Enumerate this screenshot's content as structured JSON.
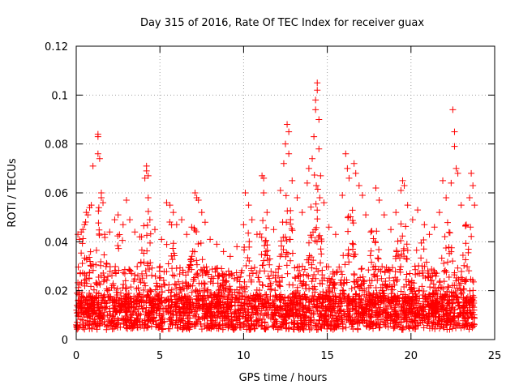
{
  "chart_data": {
    "type": "scatter",
    "title": "Day 315 of 2016, Rate Of TEC Index for receiver guax",
    "xlabel": "GPS time / hours",
    "ylabel": "ROTI / TECUs",
    "xlim": [
      0,
      25
    ],
    "ylim": [
      0,
      0.12
    ],
    "xticks": [
      0,
      5,
      10,
      15,
      20,
      25
    ],
    "xtick_labels": [
      "0",
      "5",
      "10",
      "15",
      "20",
      "25"
    ],
    "yticks": [
      0,
      0.02,
      0.04,
      0.06,
      0.08,
      0.1,
      0.12
    ],
    "ytick_labels": [
      "0",
      "0.02",
      "0.04",
      "0.06",
      "0.08",
      "0.1",
      "0.12"
    ],
    "grid": true,
    "marker": "+",
    "series_color": "#ff0000",
    "points": [
      [
        0.1,
        0.043
      ],
      [
        0.2,
        0.041
      ],
      [
        0.3,
        0.044
      ],
      [
        0.4,
        0.045
      ],
      [
        0.5,
        0.047
      ],
      [
        0.6,
        0.052
      ],
      [
        0.7,
        0.051
      ],
      [
        0.8,
        0.054
      ],
      [
        0.9,
        0.055
      ],
      [
        1.0,
        0.071
      ],
      [
        1.3,
        0.084
      ],
      [
        1.3,
        0.083
      ],
      [
        1.3,
        0.076
      ],
      [
        1.4,
        0.074
      ],
      [
        1.5,
        0.06
      ],
      [
        1.5,
        0.058
      ],
      [
        1.6,
        0.056
      ],
      [
        1.7,
        0.043
      ],
      [
        2.0,
        0.044
      ],
      [
        2.3,
        0.049
      ],
      [
        2.5,
        0.051
      ],
      [
        2.8,
        0.047
      ],
      [
        3.0,
        0.057
      ],
      [
        3.2,
        0.049
      ],
      [
        3.5,
        0.044
      ],
      [
        3.8,
        0.042
      ],
      [
        4.1,
        0.066
      ],
      [
        4.2,
        0.071
      ],
      [
        4.2,
        0.069
      ],
      [
        4.3,
        0.067
      ],
      [
        4.3,
        0.058
      ],
      [
        4.4,
        0.049
      ],
      [
        4.7,
        0.045
      ],
      [
        5.1,
        0.041
      ],
      [
        5.4,
        0.056
      ],
      [
        5.6,
        0.055
      ],
      [
        5.8,
        0.052
      ],
      [
        6.0,
        0.047
      ],
      [
        6.3,
        0.049
      ],
      [
        6.6,
        0.043
      ],
      [
        6.9,
        0.046
      ],
      [
        7.1,
        0.06
      ],
      [
        7.2,
        0.058
      ],
      [
        7.3,
        0.057
      ],
      [
        7.5,
        0.052
      ],
      [
        7.7,
        0.048
      ],
      [
        8.0,
        0.041
      ],
      [
        8.4,
        0.039
      ],
      [
        8.8,
        0.036
      ],
      [
        9.2,
        0.034
      ],
      [
        9.6,
        0.038
      ],
      [
        10.0,
        0.047
      ],
      [
        10.1,
        0.06
      ],
      [
        10.3,
        0.055
      ],
      [
        10.5,
        0.049
      ],
      [
        10.8,
        0.043
      ],
      [
        11.1,
        0.067
      ],
      [
        11.2,
        0.066
      ],
      [
        11.2,
        0.06
      ],
      [
        11.4,
        0.052
      ],
      [
        11.8,
        0.045
      ],
      [
        12.2,
        0.061
      ],
      [
        12.4,
        0.072
      ],
      [
        12.5,
        0.08
      ],
      [
        12.6,
        0.088
      ],
      [
        12.7,
        0.085
      ],
      [
        12.7,
        0.076
      ],
      [
        12.9,
        0.065
      ],
      [
        13.2,
        0.058
      ],
      [
        13.5,
        0.052
      ],
      [
        13.8,
        0.064
      ],
      [
        13.9,
        0.07
      ],
      [
        14.1,
        0.074
      ],
      [
        14.2,
        0.083
      ],
      [
        14.3,
        0.094
      ],
      [
        14.3,
        0.098
      ],
      [
        14.4,
        0.102
      ],
      [
        14.4,
        0.105
      ],
      [
        14.5,
        0.09
      ],
      [
        14.5,
        0.078
      ],
      [
        14.6,
        0.067
      ],
      [
        14.8,
        0.056
      ],
      [
        15.1,
        0.046
      ],
      [
        15.5,
        0.043
      ],
      [
        15.9,
        0.059
      ],
      [
        16.1,
        0.076
      ],
      [
        16.2,
        0.07
      ],
      [
        16.3,
        0.066
      ],
      [
        16.6,
        0.072
      ],
      [
        16.7,
        0.068
      ],
      [
        16.9,
        0.063
      ],
      [
        17.1,
        0.059
      ],
      [
        17.3,
        0.051
      ],
      [
        17.6,
        0.044
      ],
      [
        17.9,
        0.062
      ],
      [
        18.1,
        0.057
      ],
      [
        18.4,
        0.051
      ],
      [
        18.8,
        0.045
      ],
      [
        19.1,
        0.052
      ],
      [
        19.4,
        0.061
      ],
      [
        19.5,
        0.065
      ],
      [
        19.6,
        0.063
      ],
      [
        19.8,
        0.055
      ],
      [
        20.1,
        0.049
      ],
      [
        20.4,
        0.053
      ],
      [
        20.8,
        0.047
      ],
      [
        21.1,
        0.043
      ],
      [
        21.4,
        0.046
      ],
      [
        21.7,
        0.052
      ],
      [
        21.9,
        0.065
      ],
      [
        22.1,
        0.058
      ],
      [
        22.4,
        0.064
      ],
      [
        22.5,
        0.094
      ],
      [
        22.6,
        0.085
      ],
      [
        22.6,
        0.079
      ],
      [
        22.7,
        0.07
      ],
      [
        22.8,
        0.068
      ],
      [
        23.0,
        0.055
      ],
      [
        23.3,
        0.047
      ],
      [
        23.5,
        0.058
      ],
      [
        23.6,
        0.068
      ],
      [
        23.7,
        0.063
      ],
      [
        23.8,
        0.055
      ]
    ]
  }
}
